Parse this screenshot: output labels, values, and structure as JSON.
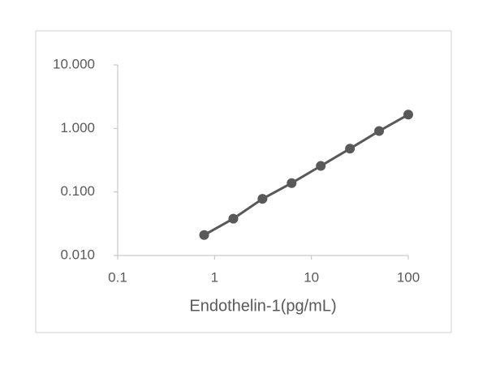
{
  "chart_data": {
    "type": "line",
    "xlabel": "Endothelin-1(pg/mL)",
    "x": [
      0.78125,
      1.5625,
      3.125,
      6.25,
      12.5,
      25,
      50,
      100
    ],
    "series": [
      {
        "color": "#595959",
        "values": [
          0.021,
          0.038,
          0.078,
          0.138,
          0.257,
          0.48,
          0.91,
          1.65
        ]
      }
    ],
    "xscale": "log",
    "yscale": "log",
    "xlim": [
      0.1,
      100
    ],
    "xticks": [
      0.1,
      1,
      10,
      100
    ],
    "ylim": [
      0.01,
      10
    ],
    "yticks": [
      {
        "value": 0.01,
        "label": "0.010"
      },
      {
        "value": 0.1,
        "label": "0.100"
      },
      {
        "value": 1,
        "label": "1.000"
      },
      {
        "value": 10,
        "label": "10.000"
      }
    ],
    "grid": false
  }
}
